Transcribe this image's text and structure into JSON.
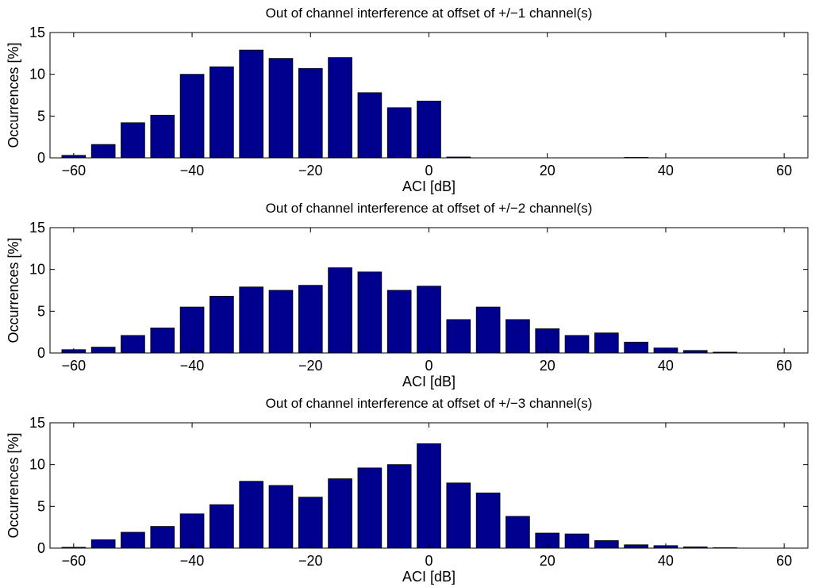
{
  "chart_data": [
    {
      "type": "bar",
      "title": "Out of channel interference at offset of +/−1 channel(s)",
      "xlabel": "ACI [dB]",
      "ylabel": "Occurrences [%]",
      "xlim": [
        -64,
        64
      ],
      "ylim": [
        0,
        15
      ],
      "xticks": [
        -60,
        -40,
        -20,
        0,
        20,
        40,
        60
      ],
      "xtick_labels": [
        "−60",
        "−40",
        "−20",
        "0",
        "20",
        "40",
        "60"
      ],
      "yticks": [
        0,
        5,
        10,
        15
      ],
      "ytick_labels": [
        "0",
        "5",
        "10",
        "15"
      ],
      "grid": false,
      "bar_color": "#00008f",
      "x": [
        -60,
        -55,
        -50,
        -45,
        -40,
        -35,
        -30,
        -25,
        -20,
        -15,
        -10,
        -5,
        0,
        5,
        10,
        15,
        20,
        25,
        30,
        35,
        40,
        45,
        50,
        55,
        60
      ],
      "values": [
        0.3,
        1.6,
        4.2,
        5.1,
        10.0,
        10.9,
        12.9,
        11.9,
        10.7,
        12.0,
        7.8,
        6.0,
        6.8,
        0.1,
        0,
        0,
        0,
        0,
        0,
        0.05,
        0,
        0,
        0,
        0,
        0
      ]
    },
    {
      "type": "bar",
      "title": "Out of channel interference at offset of +/−2 channel(s)",
      "xlabel": "ACI [dB]",
      "ylabel": "Occurrences [%]",
      "xlim": [
        -64,
        64
      ],
      "ylim": [
        0,
        15
      ],
      "xticks": [
        -60,
        -40,
        -20,
        0,
        20,
        40,
        60
      ],
      "xtick_labels": [
        "−60",
        "−40",
        "−20",
        "0",
        "20",
        "40",
        "60"
      ],
      "yticks": [
        0,
        5,
        10,
        15
      ],
      "ytick_labels": [
        "0",
        "5",
        "10",
        "15"
      ],
      "grid": false,
      "bar_color": "#00008f",
      "x": [
        -60,
        -55,
        -50,
        -45,
        -40,
        -35,
        -30,
        -25,
        -20,
        -15,
        -10,
        -5,
        0,
        5,
        10,
        15,
        20,
        25,
        30,
        35,
        40,
        45,
        50,
        55,
        60
      ],
      "values": [
        0.4,
        0.7,
        2.1,
        3.0,
        5.5,
        6.8,
        7.9,
        7.5,
        8.1,
        10.2,
        9.7,
        7.5,
        8.0,
        4.0,
        5.5,
        4.0,
        2.9,
        2.1,
        2.4,
        1.3,
        0.6,
        0.3,
        0.1,
        0,
        0
      ]
    },
    {
      "type": "bar",
      "title": "Out of channel interference at offset of +/−3 channel(s)",
      "xlabel": "ACI [dB]",
      "ylabel": "Occurrences [%]",
      "xlim": [
        -64,
        64
      ],
      "ylim": [
        0,
        15
      ],
      "xticks": [
        -60,
        -40,
        -20,
        0,
        20,
        40,
        60
      ],
      "xtick_labels": [
        "−60",
        "−40",
        "−20",
        "0",
        "20",
        "40",
        "60"
      ],
      "yticks": [
        0,
        5,
        10,
        15
      ],
      "ytick_labels": [
        "0",
        "5",
        "10",
        "15"
      ],
      "grid": false,
      "bar_color": "#00008f",
      "x": [
        -60,
        -55,
        -50,
        -45,
        -40,
        -35,
        -30,
        -25,
        -20,
        -15,
        -10,
        -5,
        0,
        5,
        10,
        15,
        20,
        25,
        30,
        35,
        40,
        45,
        50,
        55,
        60
      ],
      "values": [
        0.1,
        1.0,
        1.9,
        2.6,
        4.1,
        5.2,
        8.0,
        7.5,
        6.1,
        8.3,
        9.6,
        10.0,
        12.5,
        7.8,
        6.6,
        3.8,
        1.8,
        1.7,
        0.9,
        0.4,
        0.3,
        0.15,
        0.05,
        0,
        0
      ]
    }
  ]
}
